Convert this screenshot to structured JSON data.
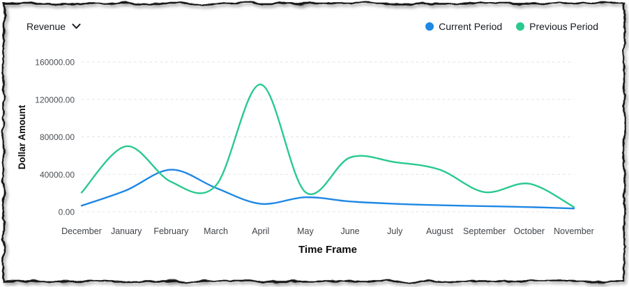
{
  "header": {
    "metric_label": "Revenue"
  },
  "legend": {
    "items": [
      {
        "label": "Current Period",
        "color": "#1e87e5"
      },
      {
        "label": "Previous Period",
        "color": "#29c98f"
      }
    ]
  },
  "chart_data": {
    "type": "line",
    "title": "",
    "xlabel": "Time Frame",
    "ylabel": "Dollar Amount",
    "categories": [
      "December",
      "January",
      "February",
      "March",
      "April",
      "May",
      "June",
      "July",
      "August",
      "September",
      "October",
      "November"
    ],
    "series": [
      {
        "name": "Current Period",
        "color": "#1e87e5",
        "values": [
          6500,
          23000,
          45000,
          25500,
          8500,
          15500,
          11000,
          8500,
          7000,
          6000,
          5000,
          3500
        ]
      },
      {
        "name": "Previous Period",
        "color": "#29c98f",
        "values": [
          20500,
          70000,
          32000,
          28000,
          136000,
          21000,
          58000,
          53000,
          45000,
          21000,
          30000,
          5000
        ]
      }
    ],
    "ylim": [
      0,
      160000
    ],
    "y_ticks": [
      "0.00",
      "40000.00",
      "80000.00",
      "120000.00",
      "160000.00"
    ],
    "grid": "horizontal-dashed",
    "legend_position": "top-right",
    "colors": {
      "grid_line": "#e0e2e5",
      "tick_text": "#4a4e54",
      "axis_title_text": "#0b0c0e",
      "frame_border": "#141414"
    }
  }
}
